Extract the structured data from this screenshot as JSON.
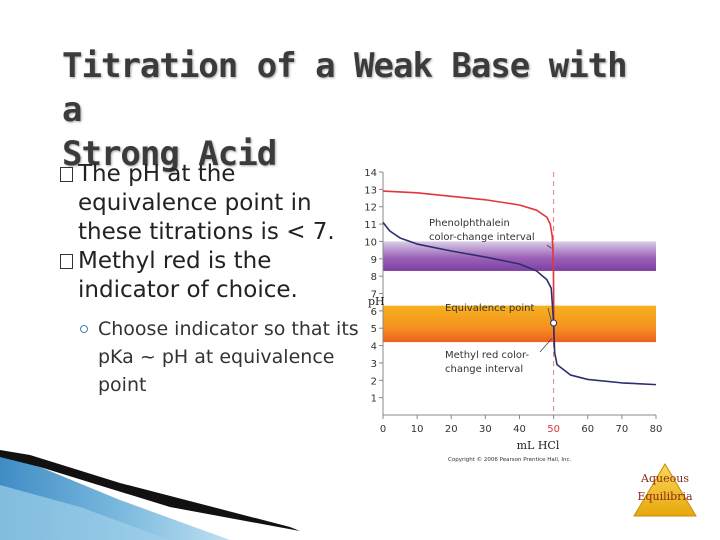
{
  "slide": {
    "title_line1": "Titration of a Weak Base with a",
    "title_line2": "Strong Acid",
    "bullets": [
      {
        "marker": "�",
        "text": "The pH at the equivalence point in these titrations is < 7."
      },
      {
        "marker": "�",
        "text": "Methyl red is the indicator of choice."
      }
    ],
    "sub_bullets": [
      {
        "text": "Choose indicator so that its pKa ~ pH at equivalence point"
      }
    ],
    "logo_line1": "Aqueous",
    "logo_line2": "Equilibria"
  },
  "chart_data": {
    "type": "line",
    "xlabel": "mL HCl",
    "ylabel": "pH",
    "xlim": [
      0,
      80
    ],
    "ylim": [
      0,
      14
    ],
    "x_ticks": [
      0,
      10,
      20,
      30,
      40,
      50,
      60,
      70,
      80
    ],
    "y_ticks": [
      1,
      2,
      3,
      4,
      5,
      6,
      7,
      8,
      9,
      10,
      11,
      12,
      13,
      14
    ],
    "equivalence_x": 50,
    "bands": [
      {
        "label": "Phenolphthalein color-change interval",
        "from": 8.3,
        "to": 10.0,
        "colors": [
          "#7b3fa1",
          "#d9cde6"
        ]
      },
      {
        "label": "Methyl red color-change interval",
        "from": 4.2,
        "to": 6.3,
        "colors": [
          "#f39a1e",
          "#f06b1e"
        ]
      }
    ],
    "series": [
      {
        "color": "#e2363d",
        "points": [
          [
            0,
            12.9
          ],
          [
            5,
            12.85
          ],
          [
            10,
            12.8
          ],
          [
            20,
            12.6
          ],
          [
            30,
            12.4
          ],
          [
            40,
            12.1
          ],
          [
            45,
            11.8
          ],
          [
            48,
            11.4
          ],
          [
            49,
            11.0
          ],
          [
            49.6,
            10.3
          ],
          [
            49.9,
            9.0
          ],
          [
            50,
            7.0
          ],
          [
            50.05,
            5.0
          ],
          [
            50.1,
            4.0
          ]
        ]
      },
      {
        "color": "#2b2f6e",
        "points": [
          [
            0,
            11.1
          ],
          [
            2,
            10.6
          ],
          [
            5,
            10.2
          ],
          [
            10,
            9.85
          ],
          [
            20,
            9.45
          ],
          [
            30,
            9.1
          ],
          [
            40,
            8.7
          ],
          [
            45,
            8.3
          ],
          [
            48,
            7.8
          ],
          [
            49.3,
            7.3
          ],
          [
            50,
            5.3
          ],
          [
            50.3,
            3.6
          ],
          [
            51,
            2.9
          ],
          [
            55,
            2.3
          ],
          [
            60,
            2.05
          ],
          [
            70,
            1.85
          ],
          [
            80,
            1.75
          ]
        ]
      }
    ],
    "annotations": [
      {
        "text": "Phenolphthalein"
      },
      {
        "text": "color-change interval"
      },
      {
        "text": "Equivalence point"
      },
      {
        "text": "Methyl red color-"
      },
      {
        "text": "change interval"
      }
    ],
    "copyright": "Copyright © 2006 Pearson Prentice Hall, Inc."
  }
}
